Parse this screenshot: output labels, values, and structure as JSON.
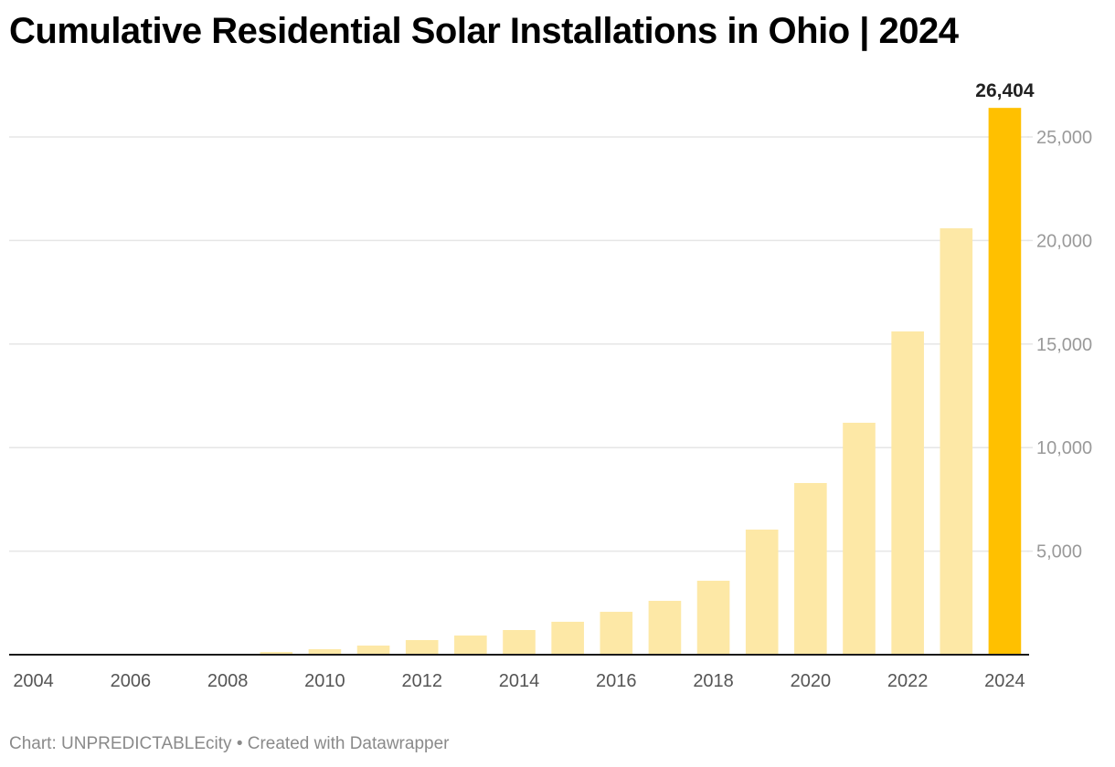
{
  "title": "Cumulative Residential Solar Installations in Ohio | 2024",
  "footer": {
    "source": "Chart: UNPREDICTABLEcity",
    "separator": "•",
    "credit": "Created with Datawrapper"
  },
  "colors": {
    "bar": "#fde8a6",
    "highlight": "#ffc000",
    "grid": "#e6e6e6",
    "baseline": "#1a1a1a",
    "tick_label": "#9a9a9a",
    "x_label": "#555555"
  },
  "chart_data": {
    "type": "bar",
    "title": "Cumulative Residential Solar Installations in Ohio | 2024",
    "xlabel": "",
    "ylabel": "",
    "categories": [
      "2004",
      "2005",
      "2006",
      "2007",
      "2008",
      "2009",
      "2010",
      "2011",
      "2012",
      "2013",
      "2014",
      "2015",
      "2016",
      "2017",
      "2018",
      "2019",
      "2020",
      "2021",
      "2022",
      "2023",
      "2024"
    ],
    "values": [
      0,
      0,
      0,
      10,
      40,
      130,
      265,
      440,
      705,
      925,
      1190,
      1590,
      2070,
      2600,
      3570,
      6040,
      8290,
      11200,
      15610,
      20590,
      26404
    ],
    "highlight_index": 20,
    "data_labels": [
      {
        "index": 20,
        "text": "26,404"
      }
    ],
    "ylim": [
      0,
      26404
    ],
    "yticks": [
      5000,
      10000,
      15000,
      20000,
      25000
    ],
    "ytick_labels": [
      "5,000",
      "10,000",
      "15,000",
      "20,000",
      "25,000"
    ],
    "y_axis_side": "right",
    "xtick_labels": [
      "2004",
      "2006",
      "2008",
      "2010",
      "2012",
      "2014",
      "2016",
      "2018",
      "2020",
      "2022",
      "2024"
    ],
    "grid": true,
    "legend": "none"
  }
}
